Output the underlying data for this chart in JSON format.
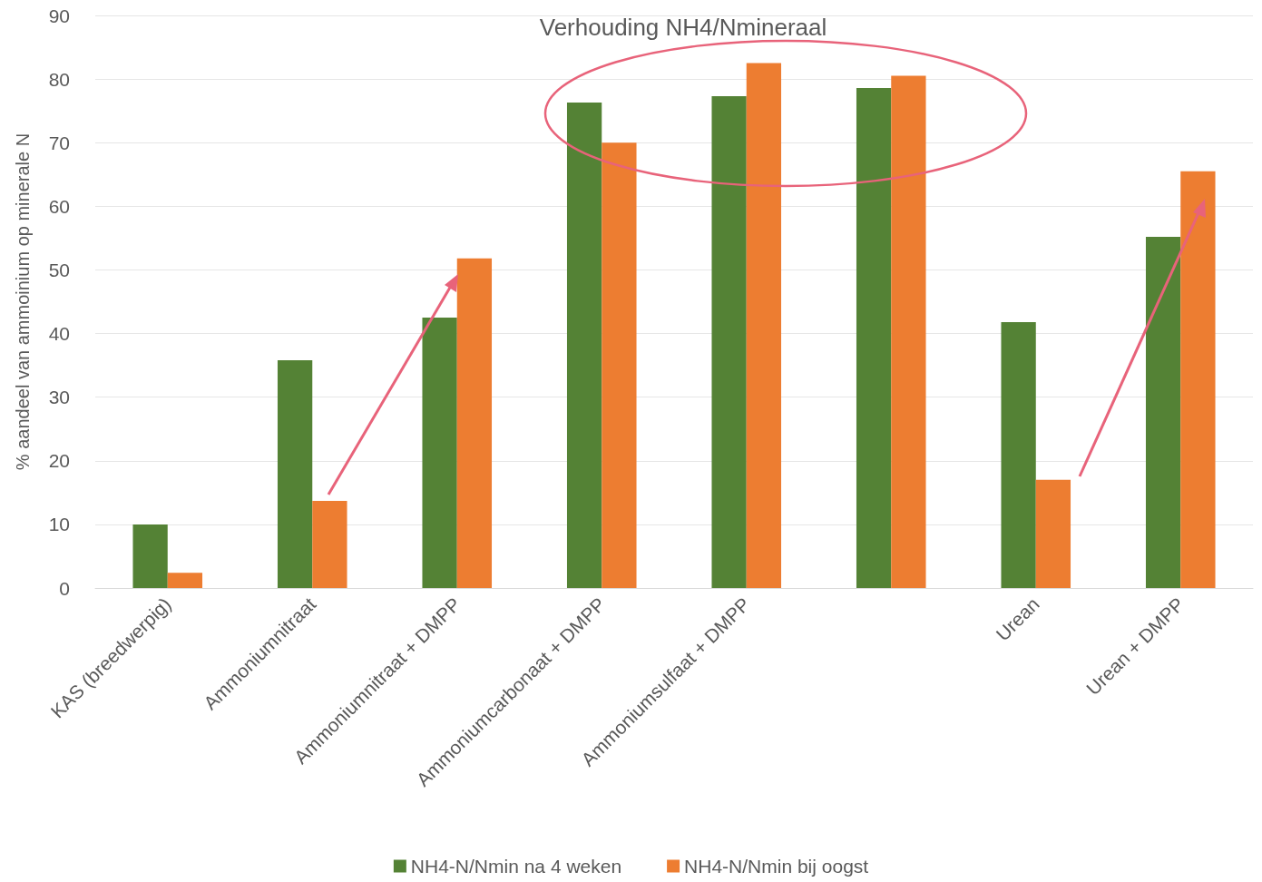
{
  "chart_data": {
    "type": "bar",
    "title": "Verhouding NH4/Nmineraal",
    "ylabel": "% aandeel van ammoinium op minerale N",
    "categories": [
      "KAS (breedwerpig)",
      "Ammoniumnitraat",
      "Ammoniumnitraat + DMPP",
      "Ammoniumcarbonaat + DMPP",
      "Ammoniumsulfaat + DMPP",
      null,
      "Urean",
      "Urean + DMPP"
    ],
    "series": [
      {
        "name": "NH4-N/Nmin na 4 weken",
        "color": "#548235",
        "values": [
          10,
          35.8,
          42.5,
          76.3,
          77.3,
          78.6,
          41.8,
          55.2
        ]
      },
      {
        "name": "NH4-N/Nmin bij oogst",
        "color": "#ed7d31",
        "values": [
          2.4,
          13.7,
          51.8,
          70,
          82.5,
          80.5,
          17,
          65.5
        ]
      }
    ],
    "ylim": [
      0,
      90
    ],
    "yticks": [
      0,
      10,
      20,
      30,
      40,
      50,
      60,
      70,
      80,
      90
    ],
    "grid": "y",
    "legend": "bottom"
  }
}
